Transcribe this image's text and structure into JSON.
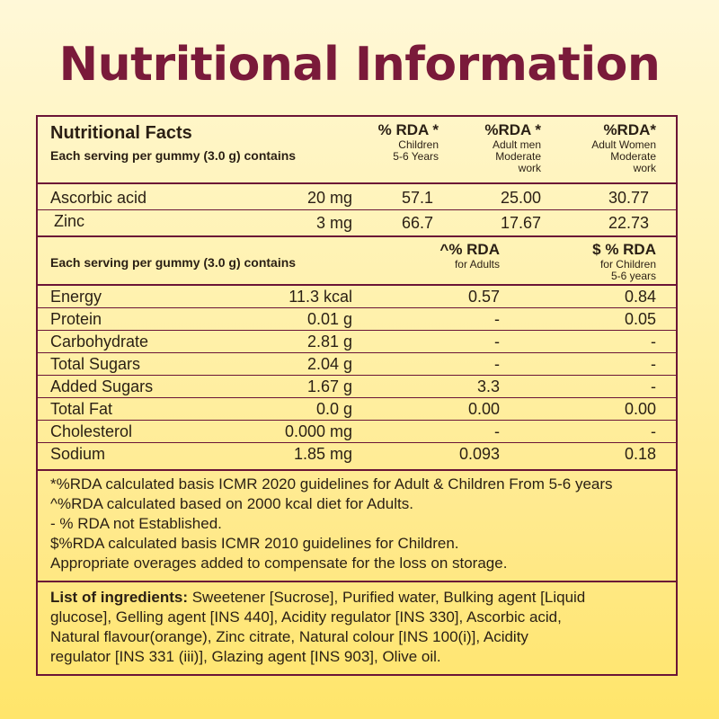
{
  "title": "Nutritional Information",
  "colors": {
    "title": "#7a1a3a",
    "border": "#6b1436",
    "background_top": "#fff8d8",
    "background_bottom": "#ffe56a"
  },
  "section1": {
    "heading": "Nutritional Facts",
    "subheading": "Each serving per gummy (3.0 g) contains",
    "columns": [
      {
        "title": "% RDA *",
        "sub": [
          "Children",
          "5-6 Years"
        ]
      },
      {
        "title": "%RDA *",
        "sub": [
          "Adult men",
          "Moderate",
          "work"
        ]
      },
      {
        "title": "%RDA*",
        "sub": [
          "Adult Women",
          "Moderate",
          "work"
        ]
      }
    ],
    "rows": [
      {
        "name": "Ascorbic acid",
        "amount": "20 mg",
        "c1": "57.1",
        "c2": "25.00",
        "c3": "30.77"
      },
      {
        "name": "Zinc",
        "amount": "3 mg",
        "c1": "66.7",
        "c2": "17.67",
        "c3": "22.73"
      }
    ]
  },
  "section2": {
    "subheading": "Each serving per gummy (3.0 g) contains",
    "columns": [
      {
        "title": "^% RDA",
        "sub": [
          "for Adults"
        ]
      },
      {
        "title": "$ % RDA",
        "sub": [
          "for Children",
          "5-6 years"
        ]
      }
    ],
    "rows": [
      {
        "name": "Energy",
        "amount": "11.3 kcal",
        "c1": "0.57",
        "c2": "0.84"
      },
      {
        "name": "Protein",
        "amount": "0.01 g",
        "c1": "-",
        "c2": "0.05"
      },
      {
        "name": "Carbohydrate",
        "amount": "2.81 g",
        "c1": "-",
        "c2": "-"
      },
      {
        "name": "Total Sugars",
        "amount": "2.04 g",
        "c1": "-",
        "c2": "-"
      },
      {
        "name": "Added Sugars",
        "amount": "1.67 g",
        "c1": "3.3",
        "c2": "-"
      },
      {
        "name": "Total Fat",
        "amount": "0.0 g",
        "c1": "0.00",
        "c2": "0.00"
      },
      {
        "name": "Cholesterol",
        "amount": "0.000 mg",
        "c1": "-",
        "c2": "-"
      },
      {
        "name": "Sodium",
        "amount": "1.85 mg",
        "c1": "0.093",
        "c2": "0.18"
      }
    ]
  },
  "footnotes": [
    "*%RDA calculated basis ICMR 2020 guidelines for Adult & Children From 5-6 years",
    "^%RDA calculated based on 2000 kcal diet for Adults.",
    "- % RDA not Established.",
    "$%RDA calculated basis ICMR 2010 guidelines for  Children.",
    "Appropriate overages added to compensate for the loss on storage."
  ],
  "ingredients": {
    "label": "List of ingredients:",
    "lines": [
      " Sweetener [Sucrose], Purified water, Bulking agent [Liquid",
      "glucose], Gelling agent [INS 440], Acidity regulator [INS 330], Ascorbic acid,",
      "Natural flavour(orange), Zinc citrate, Natural colour [INS 100(i)], Acidity",
      "regulator [INS 331 (iii)], Glazing agent [INS 903], Olive oil."
    ]
  }
}
